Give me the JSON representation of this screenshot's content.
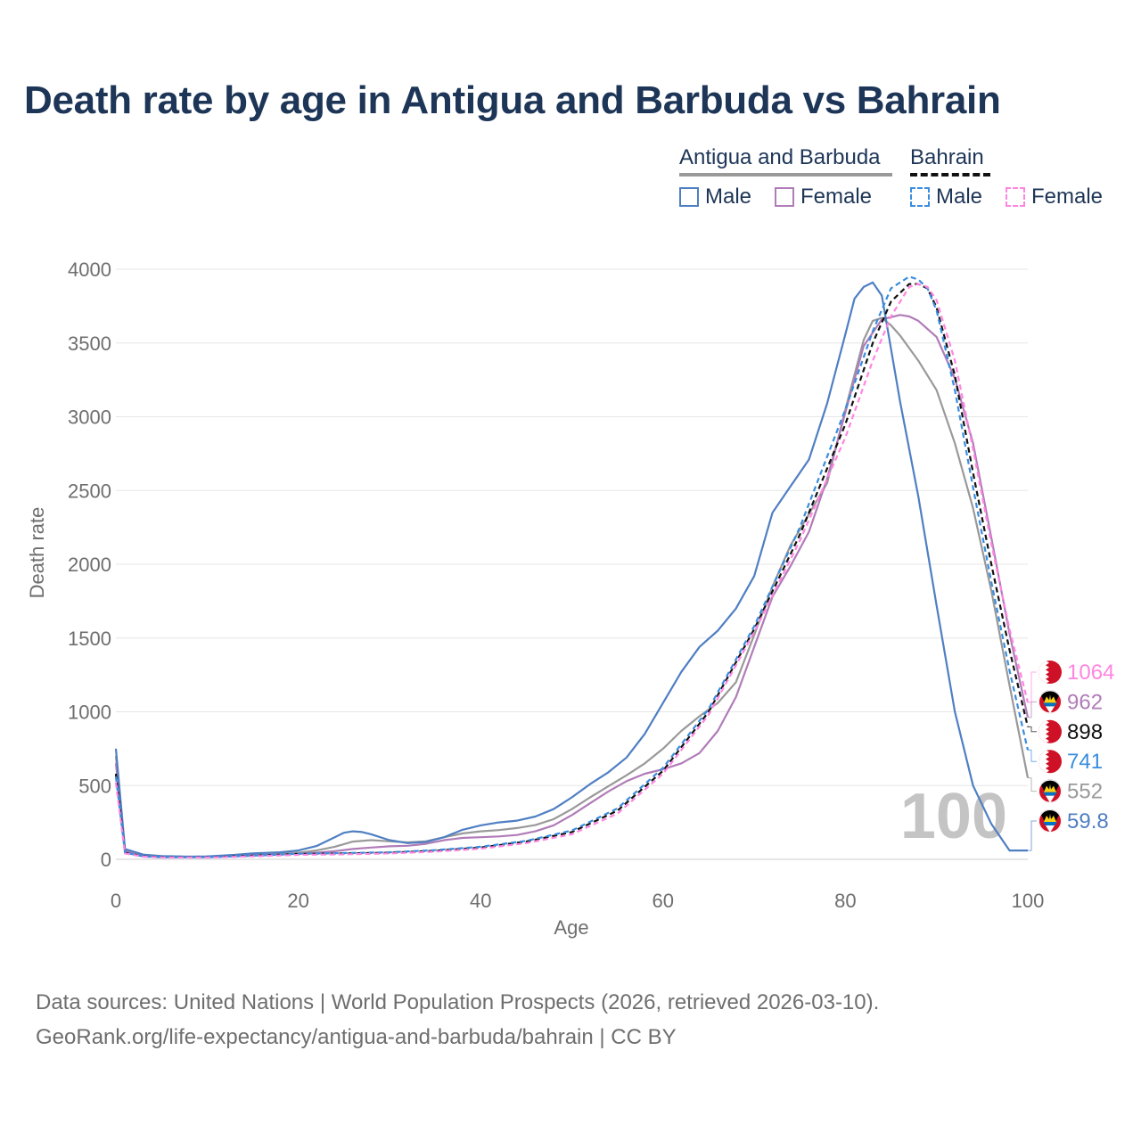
{
  "title": "Death rate by age in Antigua and Barbuda vs Bahrain",
  "legend": {
    "groups": [
      {
        "name": "Antigua and Barbuda",
        "items": [
          "Male",
          "Female"
        ]
      },
      {
        "name": "Bahrain",
        "items": [
          "Male",
          "Female"
        ]
      }
    ]
  },
  "colors": {
    "ab_male": "#4f7fc3",
    "ab_female": "#b07cb8",
    "ab_total": "#999999",
    "bh_male": "#3a8dde",
    "bh_female": "#ff85e0",
    "bh_total": "#111111",
    "title": "#1d3557"
  },
  "chart_data": {
    "type": "line",
    "xlabel": "Age",
    "ylabel": "Death rate",
    "xlim": [
      0,
      100
    ],
    "ylim": [
      0,
      4000
    ],
    "xticks": [
      "0",
      "20",
      "40",
      "60",
      "80",
      "100"
    ],
    "yticks": [
      "0",
      "500",
      "1000",
      "1500",
      "2000",
      "2500",
      "3000",
      "3500",
      "4000"
    ],
    "watermark": "100",
    "series": [
      {
        "key": "ab_total",
        "name": "Antigua and Barbuda",
        "dashed": false,
        "x": [
          0,
          1,
          3,
          5,
          8,
          10,
          13,
          15,
          18,
          20,
          22,
          24,
          26,
          28,
          30,
          32,
          34,
          36,
          38,
          40,
          42,
          44,
          46,
          48,
          50,
          52,
          54,
          56,
          58,
          60,
          62,
          64,
          66,
          68,
          70,
          72,
          74,
          76,
          78,
          80,
          82,
          83,
          84,
          85,
          86,
          88,
          90,
          92,
          94,
          96,
          98,
          100
        ],
        "y": [
          700,
          60,
          30,
          20,
          17,
          18,
          25,
          30,
          38,
          45,
          60,
          85,
          120,
          130,
          122,
          115,
          122,
          150,
          175,
          190,
          198,
          212,
          232,
          272,
          340,
          420,
          495,
          570,
          650,
          750,
          870,
          970,
          1060,
          1200,
          1520,
          1850,
          2130,
          2340,
          2550,
          3050,
          3520,
          3650,
          3670,
          3620,
          3550,
          3380,
          3180,
          2820,
          2380,
          1820,
          1180,
          552
        ],
        "end_value": "552",
        "flag": "ab"
      },
      {
        "key": "ab_female",
        "name": "Antigua and Barbuda Female",
        "dashed": false,
        "x": [
          0,
          1,
          3,
          5,
          8,
          10,
          13,
          15,
          18,
          20,
          22,
          24,
          26,
          28,
          30,
          32,
          34,
          36,
          38,
          40,
          42,
          44,
          46,
          48,
          50,
          52,
          54,
          56,
          58,
          60,
          62,
          64,
          66,
          68,
          70,
          72,
          74,
          76,
          78,
          80,
          82,
          84,
          86,
          87,
          88,
          90,
          92,
          94,
          96,
          98,
          100
        ],
        "y": [
          650,
          55,
          28,
          18,
          15,
          16,
          22,
          27,
          32,
          38,
          45,
          55,
          70,
          80,
          88,
          92,
          105,
          130,
          145,
          150,
          155,
          165,
          190,
          230,
          300,
          380,
          460,
          530,
          580,
          610,
          650,
          720,
          870,
          1100,
          1440,
          1780,
          1990,
          2220,
          2580,
          3030,
          3480,
          3660,
          3690,
          3680,
          3650,
          3540,
          3260,
          2820,
          2180,
          1530,
          962
        ],
        "end_value": "962",
        "flag": "ab"
      },
      {
        "key": "ab_male",
        "name": "Antigua and Barbuda Male",
        "dashed": false,
        "x": [
          0,
          1,
          3,
          5,
          8,
          10,
          13,
          15,
          18,
          20,
          22,
          24,
          25,
          26,
          27,
          28,
          30,
          32,
          34,
          36,
          38,
          40,
          42,
          44,
          46,
          48,
          50,
          52,
          54,
          56,
          58,
          60,
          62,
          64,
          66,
          68,
          70,
          72,
          74,
          76,
          78,
          80,
          81,
          82,
          83,
          84,
          86,
          88,
          90,
          92,
          94,
          96,
          98,
          100
        ],
        "y": [
          750,
          70,
          32,
          22,
          18,
          20,
          30,
          40,
          48,
          60,
          90,
          150,
          180,
          190,
          185,
          170,
          130,
          110,
          118,
          150,
          200,
          230,
          250,
          262,
          290,
          340,
          420,
          510,
          590,
          690,
          850,
          1060,
          1270,
          1440,
          1550,
          1700,
          1920,
          2350,
          2530,
          2710,
          3090,
          3560,
          3800,
          3880,
          3910,
          3820,
          3100,
          2460,
          1720,
          1000,
          500,
          240,
          60,
          59.8
        ],
        "end_value": "59.8",
        "flag": "ab"
      },
      {
        "key": "bh_total",
        "name": "Bahrain",
        "dashed": true,
        "x": [
          0,
          1,
          3,
          5,
          10,
          15,
          20,
          25,
          30,
          35,
          40,
          45,
          50,
          55,
          60,
          65,
          70,
          75,
          80,
          83,
          85,
          87,
          88,
          89,
          90,
          92,
          94,
          96,
          98,
          100
        ],
        "y": [
          580,
          45,
          20,
          14,
          14,
          24,
          36,
          40,
          45,
          58,
          80,
          120,
          185,
          330,
          600,
          1000,
          1560,
          2200,
          2950,
          3500,
          3780,
          3900,
          3900,
          3870,
          3740,
          3280,
          2620,
          2000,
          1420,
          898
        ],
        "end_value": "898",
        "flag": "bh"
      },
      {
        "key": "bh_male",
        "name": "Bahrain Male",
        "dashed": true,
        "x": [
          0,
          1,
          3,
          5,
          10,
          15,
          20,
          25,
          30,
          35,
          40,
          45,
          50,
          55,
          60,
          65,
          70,
          75,
          80,
          83,
          85,
          87,
          88,
          89,
          90,
          92,
          94,
          96,
          98,
          100
        ],
        "y": [
          560,
          45,
          20,
          14,
          14,
          24,
          38,
          42,
          48,
          62,
          85,
          125,
          195,
          345,
          620,
          1020,
          1580,
          2250,
          3050,
          3580,
          3870,
          3950,
          3930,
          3870,
          3720,
          3180,
          2520,
          1880,
          1280,
          741
        ],
        "end_value": "741",
        "flag": "bh"
      },
      {
        "key": "bh_female",
        "name": "Bahrain Female",
        "dashed": true,
        "x": [
          0,
          1,
          3,
          5,
          10,
          15,
          20,
          25,
          30,
          35,
          40,
          45,
          50,
          55,
          60,
          65,
          70,
          75,
          80,
          83,
          85,
          87,
          88,
          89,
          90,
          92,
          94,
          96,
          98,
          100
        ],
        "y": [
          520,
          40,
          18,
          12,
          12,
          20,
          30,
          34,
          40,
          52,
          72,
          110,
          170,
          310,
          580,
          980,
          1540,
          2160,
          2860,
          3380,
          3680,
          3880,
          3900,
          3880,
          3790,
          3380,
          2780,
          2140,
          1560,
          1064
        ],
        "end_value": "1064",
        "flag": "bh"
      }
    ]
  },
  "footer": {
    "line1": "Data sources: United Nations | World Population Prospects (2026, retrieved 2026-03-10).",
    "line2": "GeoRank.org/life-expectancy/antigua-and-barbuda/bahrain | CC BY"
  }
}
